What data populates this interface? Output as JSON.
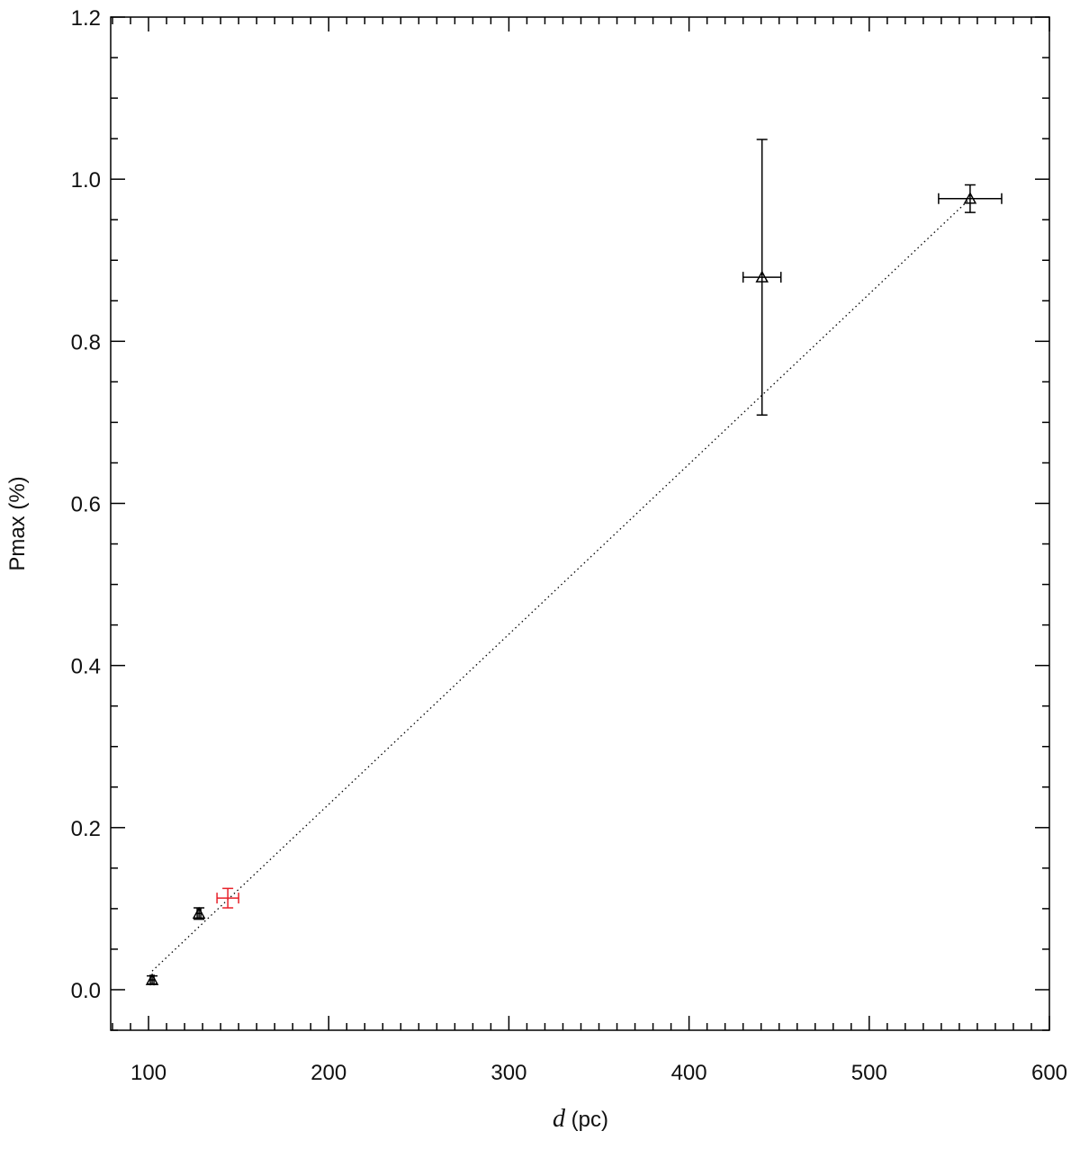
{
  "chart_data": {
    "type": "scatter",
    "xlabel": {
      "symbol": "d",
      "unit": "(pc)"
    },
    "ylabel": "Pmax (%)",
    "xlim": [
      79,
      600
    ],
    "ylim": [
      -0.05,
      1.2
    ],
    "xticks": [
      100,
      200,
      300,
      400,
      500,
      600
    ],
    "yticks": [
      {
        "value": 0,
        "label": "0.0"
      },
      0.2,
      0.4,
      0.6,
      0.8,
      {
        "value": 1,
        "label": "1.0"
      },
      1.2
    ],
    "xminor": 10,
    "yminor": 4,
    "series": [
      {
        "color": "#000000",
        "marker": "triangle",
        "x": [
          102,
          128,
          440.5,
          556
        ],
        "values": [
          0.012,
          0.094,
          0.879,
          0.976
        ],
        "xerr": [
          1,
          1,
          10.5,
          17.5
        ],
        "yerr": [
          0.005,
          0.007,
          0.17,
          0.017
        ]
      },
      {
        "color": "#e8212a",
        "marker": "none",
        "x": [
          144
        ],
        "values": [
          0.113
        ],
        "xerr": [
          6
        ],
        "yerr": [
          0.012
        ]
      }
    ],
    "fit_line": {
      "color": "#000000",
      "x": [
        102,
        556
      ],
      "y": [
        0.023,
        0.976
      ]
    }
  }
}
